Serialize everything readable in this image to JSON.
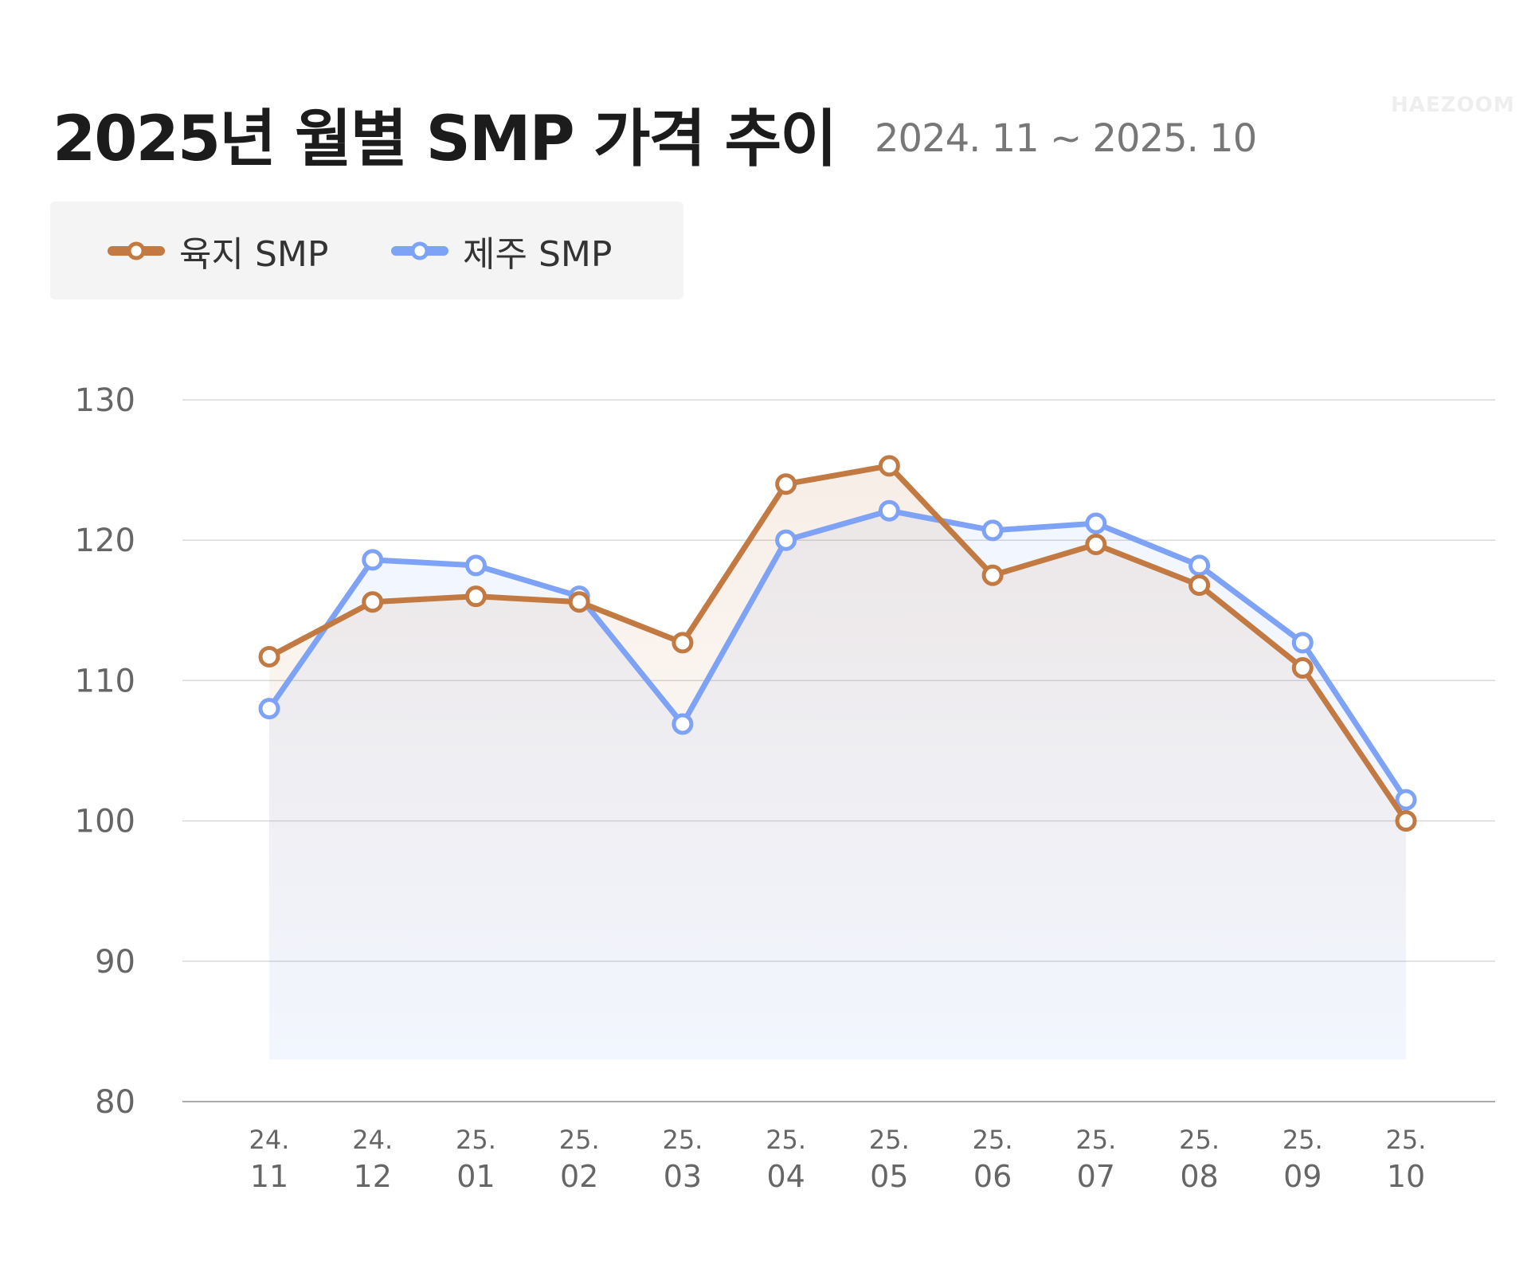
{
  "title": "2025년 월별 SMP 가격 추이",
  "subtitle": "2024. 11 ~ 2025. 10",
  "watermark": "HAEZOOM",
  "colors": {
    "mainland": "#C27A42",
    "jeju": "#7DA2F6"
  },
  "chart_data": {
    "type": "line",
    "title": "2025년 월별 SMP 가격 추이",
    "subtitle": "2024. 11 ~ 2025. 10",
    "categories": [
      [
        "24.",
        "11"
      ],
      [
        "24.",
        "12"
      ],
      [
        "25.",
        "01"
      ],
      [
        "25.",
        "02"
      ],
      [
        "25.",
        "03"
      ],
      [
        "25.",
        "04"
      ],
      [
        "25.",
        "05"
      ],
      [
        "25.",
        "06"
      ],
      [
        "25.",
        "07"
      ],
      [
        "25.",
        "08"
      ],
      [
        "25.",
        "09"
      ],
      [
        "25.",
        "10"
      ]
    ],
    "series": [
      {
        "name": "육지 SMP",
        "color": "#C27A42",
        "values": [
          111.7,
          115.6,
          116.0,
          115.6,
          112.7,
          124.0,
          125.3,
          117.5,
          119.7,
          116.8,
          110.9,
          100.0
        ]
      },
      {
        "name": "제주 SMP",
        "color": "#7DA2F6",
        "values": [
          108.0,
          118.6,
          118.2,
          116.0,
          106.9,
          120.0,
          122.1,
          120.7,
          121.2,
          118.2,
          112.7,
          101.5
        ]
      }
    ],
    "ylim": [
      80,
      130
    ],
    "yticks": [
      130,
      120,
      110,
      100,
      90,
      80
    ],
    "grid": true,
    "legend": "top-left"
  }
}
